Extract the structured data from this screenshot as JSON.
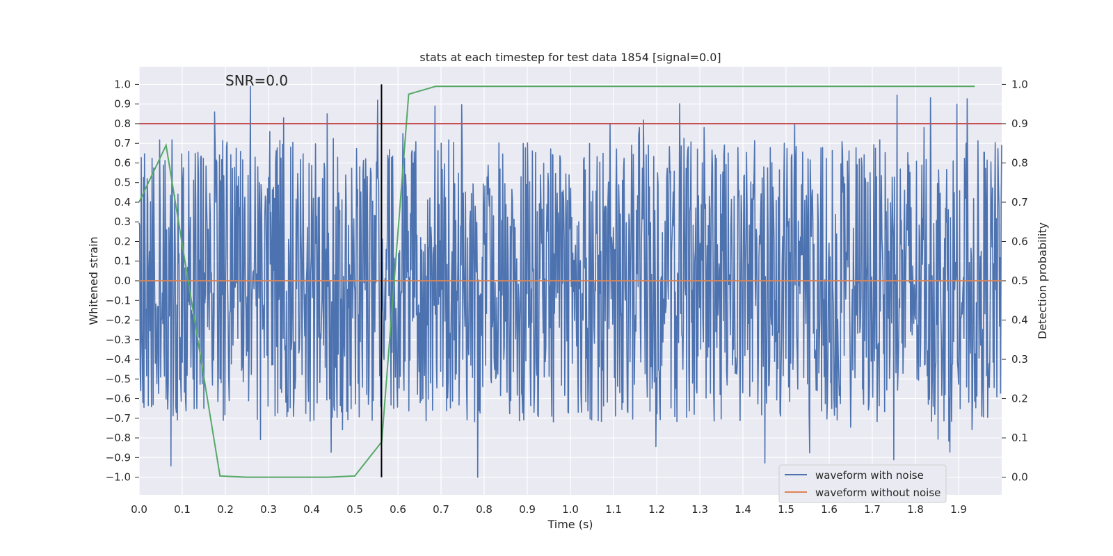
{
  "chart_data": {
    "type": "line",
    "title": "stats at each timestep for test data 1854 [signal=0.0]",
    "xlabel": "Time (s)",
    "ylabel_left": "Whitened strain",
    "ylabel_right": "Detection probability",
    "xlim": [
      0.0,
      2.0
    ],
    "ylim_left": [
      -1.09,
      1.09
    ],
    "ylim_right": [
      -0.045,
      1.045
    ],
    "x_ticks": [
      "0.0",
      "0.1",
      "0.2",
      "0.3",
      "0.4",
      "0.5",
      "0.6",
      "0.7",
      "0.8",
      "0.9",
      "1.0",
      "1.1",
      "1.2",
      "1.3",
      "1.4",
      "1.5",
      "1.6",
      "1.7",
      "1.8",
      "1.9"
    ],
    "y_ticks_left": [
      "1.0",
      "0.9",
      "0.8",
      "0.7",
      "0.6",
      "0.5",
      "0.4",
      "0.3",
      "0.2",
      "0.1",
      "0.0",
      "−0.1",
      "−0.2",
      "−0.3",
      "−0.4",
      "−0.5",
      "−0.6",
      "−0.7",
      "−0.8",
      "−0.9",
      "−1.0"
    ],
    "y_ticks_right": [
      "1.0",
      "0.9",
      "0.8",
      "0.7",
      "0.6",
      "0.5",
      "0.4",
      "0.3",
      "0.2",
      "0.1",
      "0.0"
    ],
    "annotation": "SNR=0.0",
    "threshold_line": {
      "value_right": 0.9,
      "color": "#c44e52"
    },
    "marker_line": {
      "x": 0.562,
      "ymin": -1.0,
      "ymax": 1.0,
      "color": "#000000"
    },
    "series": [
      {
        "name": "waveform with noise",
        "axis": "left",
        "color": "#4c72b0",
        "description": "whitened noise, approx. uniform samples in [-1, 1] over 2 s",
        "peaks": [
          {
            "x": 0.175,
            "y": 0.86
          },
          {
            "x": 0.258,
            "y": 0.99
          },
          {
            "x": 0.303,
            "y": 0.76
          },
          {
            "x": 0.335,
            "y": 0.83
          },
          {
            "x": 0.436,
            "y": 0.85
          },
          {
            "x": 0.553,
            "y": 0.92
          },
          {
            "x": 0.686,
            "y": 0.89
          },
          {
            "x": 0.785,
            "y": -1.0
          },
          {
            "x": 1.16,
            "y": 0.78
          },
          {
            "x": 1.31,
            "y": 0.78
          },
          {
            "x": 1.52,
            "y": 0.8
          },
          {
            "x": 1.82,
            "y": 0.78
          }
        ]
      },
      {
        "name": "waveform without noise",
        "axis": "left",
        "color": "#dd8452",
        "x": [
          0.0,
          2.0
        ],
        "y": [
          0.0,
          0.0
        ]
      },
      {
        "name": "detection probability",
        "axis": "right",
        "color": "#55a868",
        "x": [
          0.0,
          0.0625,
          0.1875,
          0.25,
          0.4375,
          0.5,
          0.5625,
          0.625,
          0.6875,
          1.9375
        ],
        "y": [
          0.7,
          0.845,
          0.003,
          0.0,
          0.0,
          0.003,
          0.09,
          0.975,
          0.995,
          0.995
        ]
      }
    ],
    "legend": {
      "position": "lower-right",
      "entries": [
        {
          "label": "waveform with noise",
          "color": "#4c72b0"
        },
        {
          "label": "waveform without noise",
          "color": "#dd8452"
        }
      ]
    },
    "background_color": "#eaeaf2",
    "grid_color": "#ffffff"
  }
}
